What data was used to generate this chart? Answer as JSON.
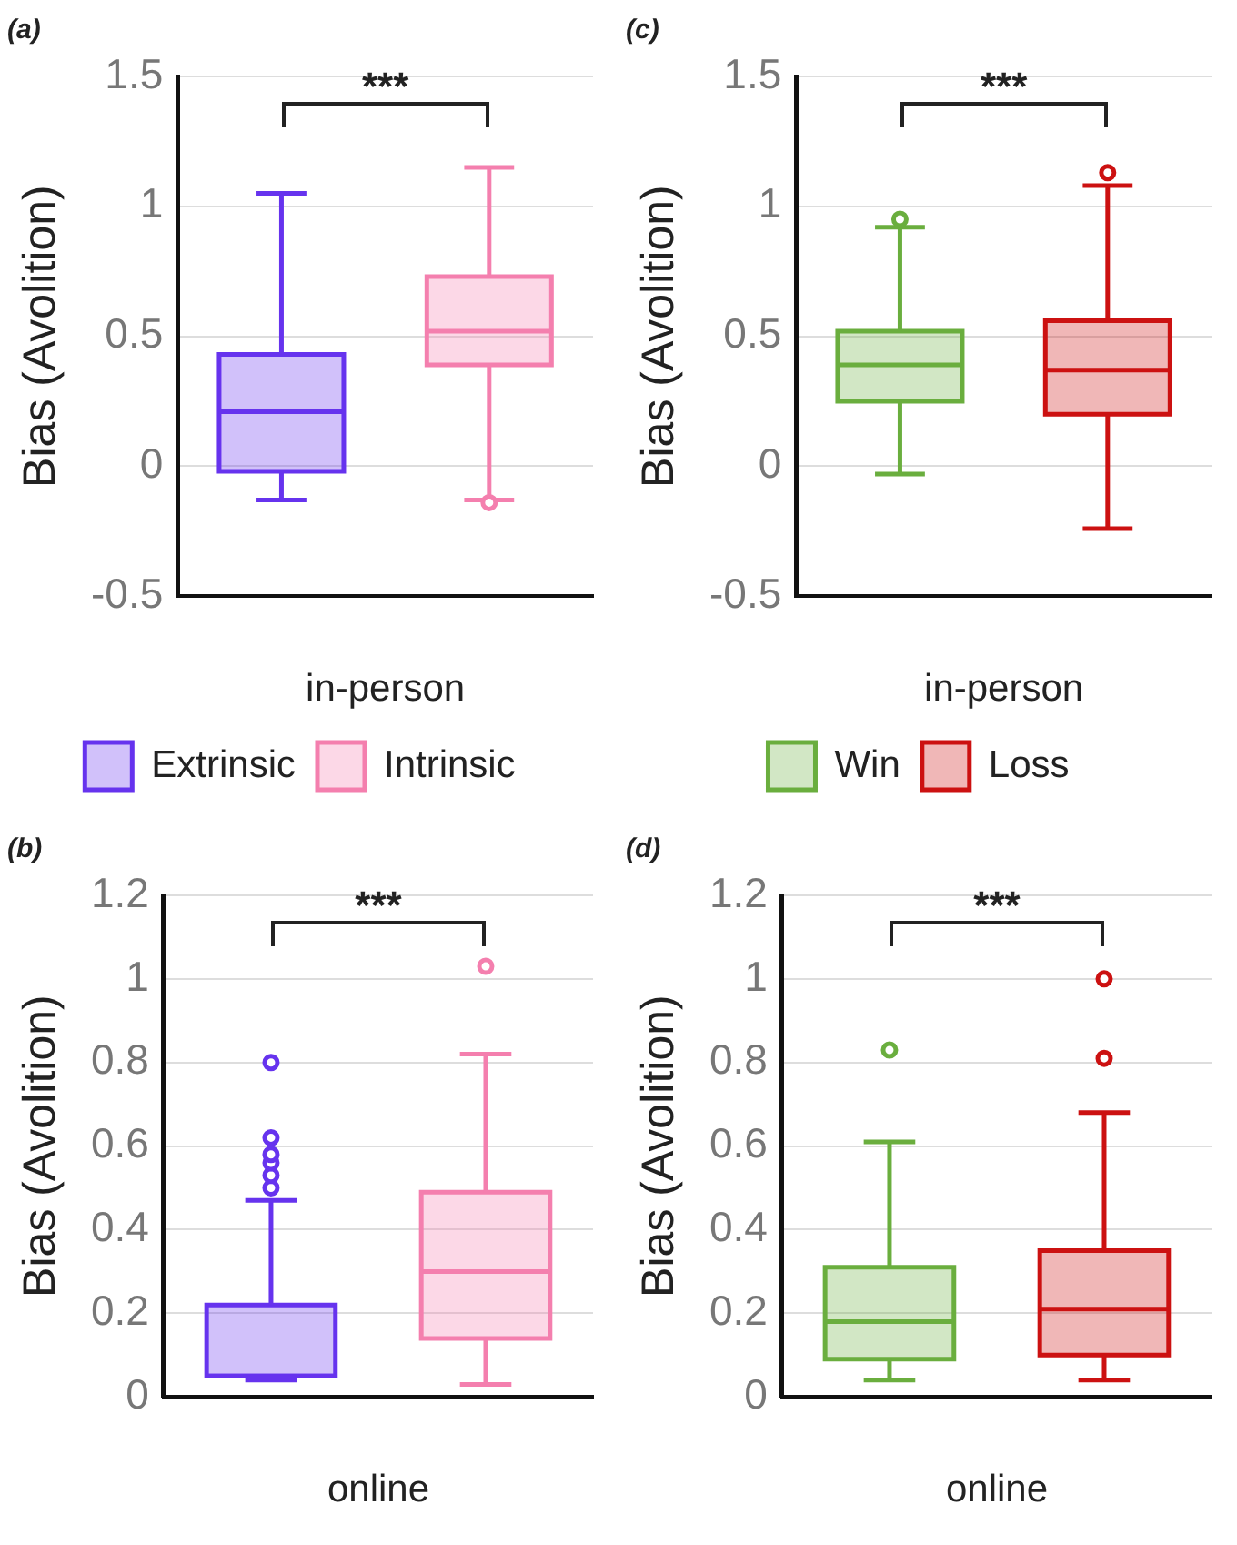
{
  "chart_data": [
    {
      "type": "box",
      "title": "(a)",
      "xlabel": "in-person",
      "ylabel": "Bias (Avolition)",
      "categories": [
        null,
        null
      ],
      "ylim": [
        -0.5,
        1.5
      ],
      "yticks": [
        -0.5,
        0,
        0.5,
        1,
        1.5
      ],
      "grid": "y",
      "legend": "bottom",
      "annotations": [
        "***"
      ],
      "series": [
        {
          "name": "Extrinsic",
          "color": "#6633ee",
          "boxes": [
            {
              "low": -0.13,
              "q1": -0.02,
              "median": 0.21,
              "q3": 0.43,
              "high": 1.05
            },
            null
          ]
        },
        {
          "name": "Intrinsic",
          "color": "#f47fae",
          "boxes": [
            null,
            {
              "low": -0.13,
              "q1": 0.39,
              "median": 0.52,
              "q3": 0.73,
              "high": 1.15,
              "outliers": [
                -0.14
              ]
            }
          ]
        }
      ]
    },
    {
      "type": "box",
      "title": "(c)",
      "xlabel": "in-person",
      "ylabel": "Bias (Avolition)",
      "categories": [
        null,
        null
      ],
      "ylim": [
        -0.5,
        1.5
      ],
      "yticks": [
        -0.5,
        0,
        0.5,
        1,
        1.5
      ],
      "grid": "y",
      "legend": "bottom",
      "annotations": [
        "***"
      ],
      "series": [
        {
          "name": "Win",
          "color": "#6aae3e",
          "boxes": [
            {
              "low": -0.03,
              "q1": 0.25,
              "median": 0.39,
              "q3": 0.52,
              "high": 0.92,
              "outliers": [
                0.95
              ]
            },
            null
          ]
        },
        {
          "name": "Loss",
          "color": "#cc1111",
          "boxes": [
            null,
            {
              "low": -0.24,
              "q1": 0.2,
              "median": 0.37,
              "q3": 0.56,
              "high": 1.08,
              "outliers": [
                1.13
              ]
            }
          ]
        }
      ]
    },
    {
      "type": "box",
      "title": "(b)",
      "xlabel": "online",
      "ylabel": "Bias (Avolition)",
      "categories": [
        null,
        null
      ],
      "ylim": [
        0,
        1.2
      ],
      "yticks": [
        0,
        0.2,
        0.4,
        0.6,
        0.8,
        1,
        1.2
      ],
      "grid": "y",
      "annotations": [
        "***"
      ],
      "series": [
        {
          "color": "#6633ee",
          "boxes": [
            {
              "low": 0.04,
              "q1": 0.05,
              "median": 0.05,
              "q3": 0.22,
              "high": 0.47,
              "outliers": [
                0.5,
                0.53,
                0.56,
                0.58,
                0.62,
                0.8
              ]
            },
            null
          ]
        },
        {
          "color": "#f47fae",
          "boxes": [
            null,
            {
              "low": 0.03,
              "q1": 0.14,
              "median": 0.3,
              "q3": 0.49,
              "high": 0.82,
              "outliers": [
                1.03
              ]
            }
          ]
        }
      ]
    },
    {
      "type": "box",
      "title": "(d)",
      "xlabel": "online",
      "ylabel": "Bias (Avolition)",
      "categories": [
        null,
        null
      ],
      "ylim": [
        0,
        1.2
      ],
      "yticks": [
        0,
        0.2,
        0.4,
        0.6,
        0.8,
        1,
        1.2
      ],
      "grid": "y",
      "annotations": [
        "***"
      ],
      "series": [
        {
          "color": "#6aae3e",
          "boxes": [
            {
              "low": 0.04,
              "q1": 0.09,
              "median": 0.18,
              "q3": 0.31,
              "high": 0.61,
              "outliers": [
                0.83
              ]
            },
            null
          ]
        },
        {
          "color": "#cc1111",
          "boxes": [
            null,
            {
              "low": 0.04,
              "q1": 0.1,
              "median": 0.21,
              "q3": 0.35,
              "high": 0.68,
              "outliers": [
                0.81,
                1
              ]
            }
          ]
        }
      ]
    }
  ]
}
